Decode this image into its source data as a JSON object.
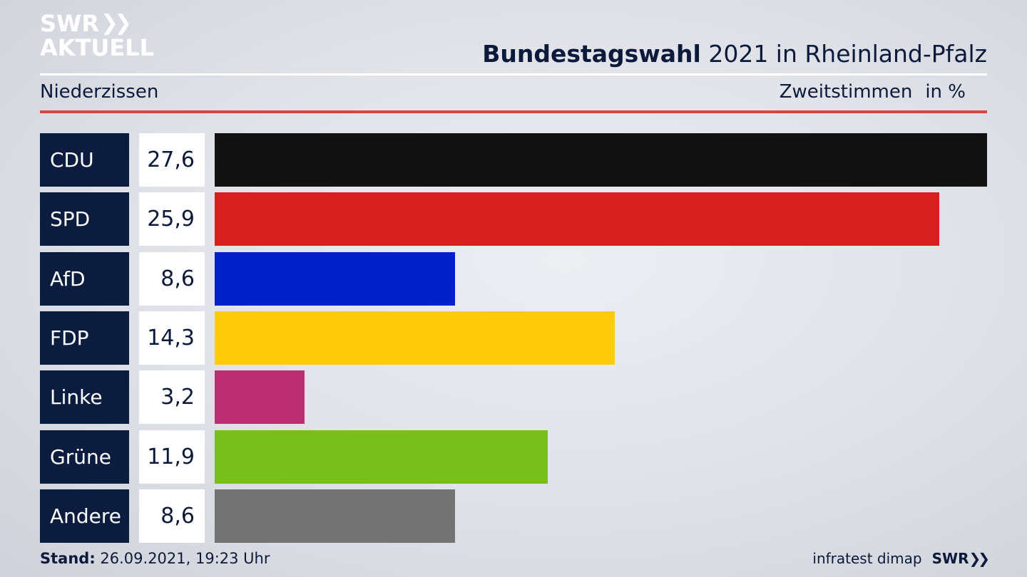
{
  "logo": {
    "line1": "SWR",
    "line2": "AKTUELL"
  },
  "header": {
    "title_bold": "Bundestagswahl",
    "title_rest": " 2021 in Rheinland-Pfalz",
    "region": "Niederzissen",
    "metric": "Zweitstimmen",
    "unit": "in %"
  },
  "footer": {
    "stand_label": "Stand:",
    "stand_value": " 26.09.2021, 19:23 Uhr",
    "source": "infratest dimap",
    "brand": "SWR"
  },
  "colors": {
    "CDU": "#121212",
    "SPD": "#d81f20",
    "AfD": "#0021c8",
    "FDP": "#fecc0a",
    "Linke": "#bd2f72",
    "Grüne": "#78be1c",
    "Andere": "#737373"
  },
  "chart_data": {
    "type": "bar",
    "orientation": "horizontal",
    "title": "Bundestagswahl 2021 in Rheinland-Pfalz",
    "subtitle": "Niederzissen",
    "metric": "Zweitstimmen",
    "unit": "in %",
    "categories": [
      "CDU",
      "SPD",
      "AfD",
      "FDP",
      "Linke",
      "Grüne",
      "Andere"
    ],
    "values": [
      27.6,
      25.9,
      8.6,
      14.3,
      3.2,
      11.9,
      8.6
    ],
    "value_labels": [
      "27,6",
      "25,9",
      "8,6",
      "14,3",
      "3,2",
      "11,9",
      "8,6"
    ],
    "grid": false,
    "legend": "none"
  }
}
